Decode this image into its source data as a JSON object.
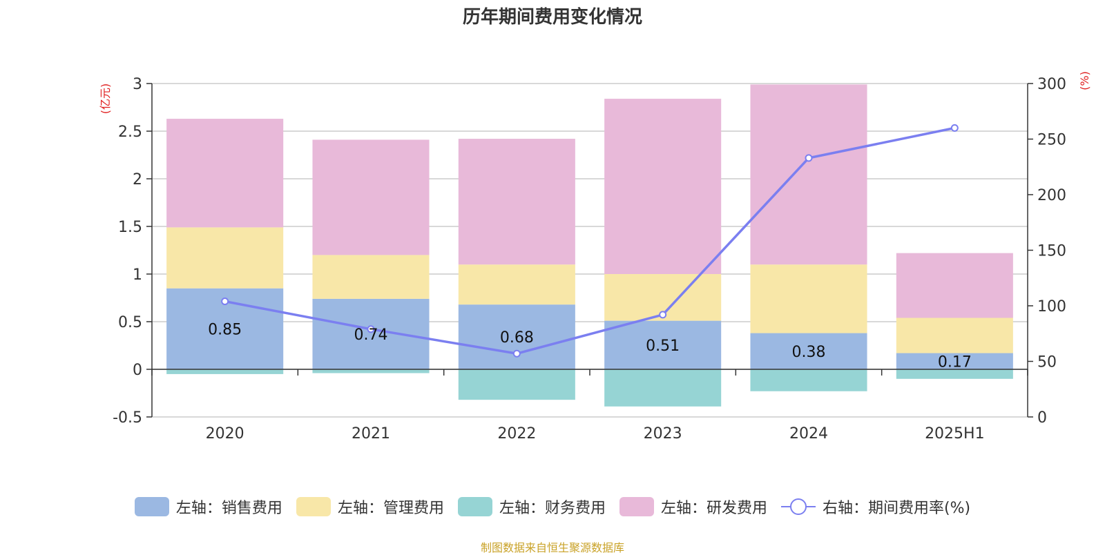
{
  "chart_data": {
    "type": "bar",
    "title": "历年期间费用变化情况",
    "categories": [
      "2020",
      "2021",
      "2022",
      "2023",
      "2024",
      "2025H1"
    ],
    "left_axis": {
      "unit_label": "(亿元)",
      "ylim": [
        -0.5,
        3
      ],
      "ticks": [
        "3",
        "2.5",
        "2",
        "1.5",
        "1",
        "0.5",
        "0",
        "-0.5"
      ]
    },
    "right_axis": {
      "unit_label": "(%)",
      "ylim": [
        0,
        300
      ],
      "ticks": [
        "300",
        "250",
        "200",
        "150",
        "100",
        "50",
        "0"
      ]
    },
    "series": [
      {
        "name": "左轴：销售费用",
        "type": "bar",
        "color": "#9bb8e2",
        "values": [
          0.85,
          0.74,
          0.68,
          0.51,
          0.38,
          0.17
        ],
        "labels": [
          "0.85",
          "0.74",
          "0.68",
          "0.51",
          "0.38",
          "0.17"
        ]
      },
      {
        "name": "左轴：管理费用",
        "type": "bar",
        "color": "#f8e7a8",
        "values": [
          0.64,
          0.46,
          0.42,
          0.49,
          0.72,
          0.37
        ]
      },
      {
        "name": "左轴：财务费用",
        "type": "bar",
        "color": "#96d4d4",
        "values": [
          -0.05,
          -0.04,
          -0.32,
          -0.39,
          -0.23,
          -0.1
        ]
      },
      {
        "name": "左轴：研发费用",
        "type": "bar",
        "color": "#e8b9d9",
        "values": [
          1.14,
          1.21,
          1.32,
          1.84,
          1.89,
          0.68
        ]
      },
      {
        "name": "右轴：期间费用率(%)",
        "type": "line",
        "color": "#7b7ff0",
        "values": [
          104,
          79,
          57,
          92,
          233,
          260
        ]
      }
    ],
    "grid": true,
    "legend_position": "bottom"
  },
  "source_note": "制图数据来自恒生聚源数据库"
}
